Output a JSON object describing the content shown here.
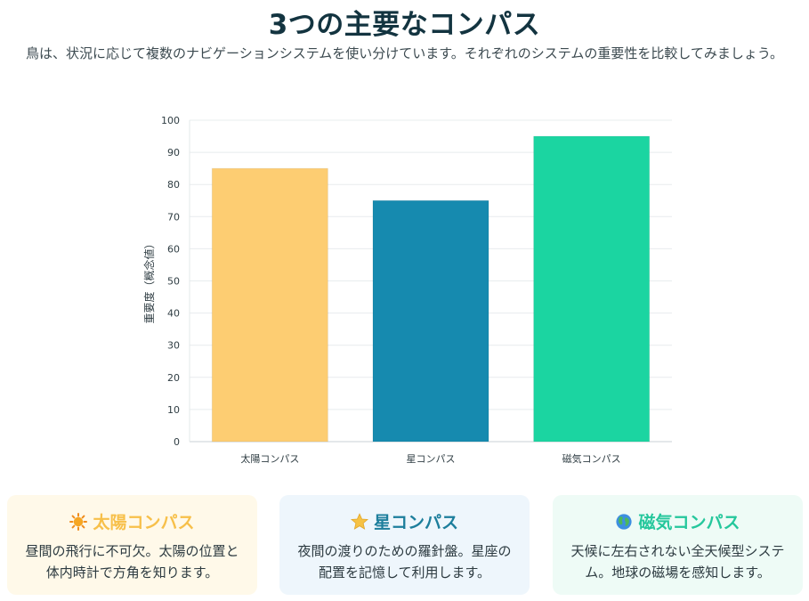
{
  "header": {
    "title": "3つの主要なコンパス",
    "subtitle": "鳥は、状況に応じて複数のナビゲーションシステムを使い分けています。それぞれのシステムの重要性を比較してみましょう。"
  },
  "chart_data": {
    "type": "bar",
    "categories": [
      "太陽コンパス",
      "星コンパス",
      "磁気コンパス"
    ],
    "values": [
      85,
      75,
      95
    ],
    "colors": [
      "#fdcd72",
      "#168aaf",
      "#1bd5a1"
    ],
    "ylabel": "重要度（概念値）",
    "ylim": [
      0,
      100
    ],
    "yticks": [
      0,
      10,
      20,
      30,
      40,
      50,
      60,
      70,
      80,
      90,
      100
    ],
    "grid": true,
    "legend": "none"
  },
  "cards": [
    {
      "title": "太陽コンパス",
      "icon": "sun-icon",
      "title_color": "#f7c04a",
      "bg": "#fff9e9",
      "desc": "昼間の飛行に不可欠。太陽の位置と体内時計で方角を知ります。"
    },
    {
      "title": "星コンパス",
      "icon": "star-icon",
      "title_color": "#1c7e9c",
      "bg": "#eef6fc",
      "desc": "夜間の渡りのための羅針盤。星座の配置を記憶して利用します。"
    },
    {
      "title": "磁気コンパス",
      "icon": "globe-icon",
      "title_color": "#25c79c",
      "bg": "#eefbf6",
      "desc": "天候に左右されない全天候型システム。地球の磁場を感知します。"
    }
  ]
}
